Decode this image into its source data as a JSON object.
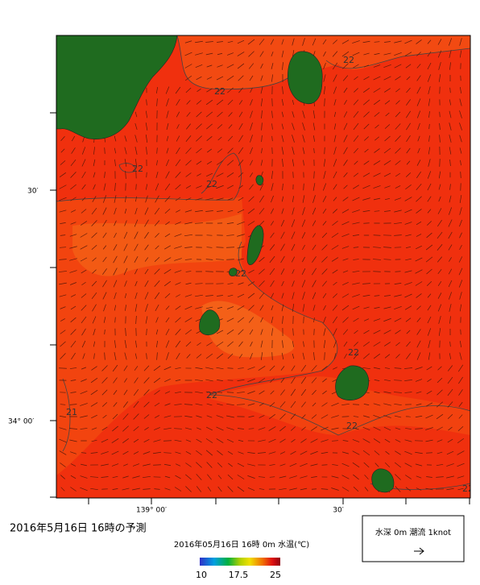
{
  "header": {
    "title": "2016年5月16日 16時の予測"
  },
  "map": {
    "lat_labels": [
      "30′",
      "34° 00′"
    ],
    "lon_labels": [
      "139° 00′",
      "30′"
    ],
    "contour_labels": [
      "22",
      "22",
      "22",
      "22",
      "22",
      "22",
      "22",
      "22",
      "21",
      "22"
    ]
  },
  "colorbar": {
    "title": "2016年05月16日 16時 0m 水温(℃)",
    "ticks": [
      10,
      17.5,
      25
    ]
  },
  "legend": {
    "label": "水深 0m 潮流 1knot"
  }
}
